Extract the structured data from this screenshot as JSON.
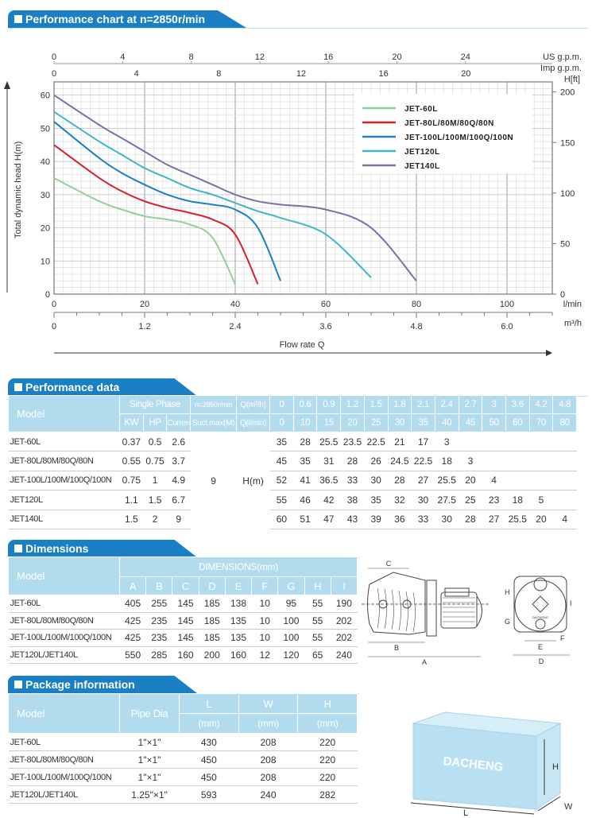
{
  "sections": {
    "chart": "Performance chart at n=2850r/min",
    "performance": "Performance data",
    "dimensions": "Dimensions",
    "package": "Package information"
  },
  "chart_data": {
    "type": "line",
    "title": "Performance chart at n=2850r/min",
    "xlabel": "Flow rate Q",
    "ylabel": "Total dynamic head H(m)",
    "x_unit": "l/min",
    "x2_unit": "m³/h",
    "top_unit_1": "US g.p.m.",
    "top_unit_2": "Imp g.p.m.",
    "right_unit": "H[ft]",
    "xlim": [
      0,
      110
    ],
    "ylim": [
      0,
      64
    ],
    "grid": true,
    "legend_position": "top-right",
    "x_ticks": [
      0,
      20,
      40,
      60,
      80,
      100
    ],
    "x2_ticks": [
      "0",
      "1.2",
      "2.4",
      "3.6",
      "4.8",
      "6.0"
    ],
    "y_ticks": [
      0,
      10,
      20,
      30,
      40,
      50,
      60
    ],
    "right_ticks": [
      0,
      50,
      100,
      150,
      200
    ],
    "us_gpm_ticks": [
      0,
      4,
      8,
      12,
      16,
      20,
      24
    ],
    "imp_gpm_ticks": [
      0,
      4,
      8,
      12,
      16,
      20
    ],
    "series": [
      {
        "name": "JET-60L",
        "color": "#8fd0a0",
        "x": [
          0,
          10,
          15,
          20,
          25,
          30,
          35,
          40
        ],
        "y": [
          35,
          28,
          25.5,
          23.5,
          22.5,
          21,
          17,
          3
        ]
      },
      {
        "name": "JET-80L/80M/80Q/80N",
        "color": "#d81e2a",
        "x": [
          0,
          10,
          15,
          20,
          25,
          30,
          35,
          40,
          45
        ],
        "y": [
          45,
          35,
          31,
          28,
          26,
          24.5,
          22.5,
          18,
          3
        ]
      },
      {
        "name": "JET-100L/100M/100Q/100N",
        "color": "#1a7fc4",
        "x": [
          0,
          10,
          15,
          20,
          25,
          30,
          35,
          40,
          45,
          50
        ],
        "y": [
          52,
          41,
          36.5,
          33,
          30,
          28,
          27,
          25.5,
          20,
          4
        ]
      },
      {
        "name": "JET120L",
        "color": "#3fb8c4",
        "x": [
          0,
          10,
          15,
          20,
          25,
          30,
          35,
          40,
          45,
          50,
          60,
          70
        ],
        "y": [
          55,
          46,
          42,
          38,
          35,
          32,
          30,
          27.5,
          25,
          23,
          18,
          5
        ]
      },
      {
        "name": "JET140L",
        "color": "#7a70a8",
        "x": [
          0,
          10,
          15,
          20,
          25,
          30,
          35,
          40,
          45,
          50,
          60,
          70,
          80
        ],
        "y": [
          60,
          51,
          47,
          43,
          39,
          36,
          33,
          30,
          28,
          27,
          25.5,
          20,
          4
        ]
      }
    ]
  },
  "performance": {
    "head": {
      "model": "Model",
      "single_phase": "Single Phase",
      "kw": "KW",
      "hp": "HP",
      "current": "Current(A)",
      "speed": "n=2850r/min",
      "suct": "Suct.max(M)",
      "q_m3h": "Q(m³/h)",
      "q_lmin": "Q(l/min)"
    },
    "q_m3h": [
      "0",
      "0.6",
      "0.9",
      "1.2",
      "1.5",
      "1.8",
      "2.1",
      "2.4",
      "2.7",
      "3",
      "3.6",
      "4.2",
      "4.8"
    ],
    "q_lmin": [
      "0",
      "10",
      "15",
      "20",
      "25",
      "30",
      "35",
      "40",
      "45",
      "50",
      "60",
      "70",
      "80"
    ],
    "suct_value": "9",
    "h_label": "H(m)",
    "rows": [
      {
        "model": "JET-60L",
        "kw": "0.37",
        "hp": "0.5",
        "current": "2.6",
        "h": [
          "35",
          "28",
          "25.5",
          "23.5",
          "22.5",
          "21",
          "17",
          "3",
          "",
          "",
          "",
          "",
          ""
        ]
      },
      {
        "model": "JET-80L/80M/80Q/80N",
        "kw": "0.55",
        "hp": "0.75",
        "current": "3.7",
        "h": [
          "45",
          "35",
          "31",
          "28",
          "26",
          "24.5",
          "22.5",
          "18",
          "3",
          "",
          "",
          "",
          ""
        ]
      },
      {
        "model": "JET-100L/100M/100Q/100N",
        "kw": "0.75",
        "hp": "1",
        "current": "4.9",
        "h": [
          "52",
          "41",
          "36.5",
          "33",
          "30",
          "28",
          "27",
          "25.5",
          "20",
          "4",
          "",
          "",
          ""
        ]
      },
      {
        "model": "JET120L",
        "kw": "1.1",
        "hp": "1.5",
        "current": "6.7",
        "h": [
          "55",
          "46",
          "42",
          "38",
          "35",
          "32",
          "30",
          "27.5",
          "25",
          "23",
          "18",
          "5",
          ""
        ]
      },
      {
        "model": "JET140L",
        "kw": "1.5",
        "hp": "2",
        "current": "9",
        "h": [
          "60",
          "51",
          "47",
          "43",
          "39",
          "36",
          "33",
          "30",
          "28",
          "27",
          "25.5",
          "20",
          "4"
        ]
      }
    ]
  },
  "dimensions": {
    "head": {
      "model": "Model",
      "group": "DIMENSIONS(mm)"
    },
    "cols": [
      "A",
      "B",
      "C",
      "D",
      "E",
      "F",
      "G",
      "H",
      "I"
    ],
    "rows": [
      {
        "model": "JET-60L",
        "v": [
          "405",
          "255",
          "145",
          "185",
          "138",
          "10",
          "95",
          "55",
          "190"
        ]
      },
      {
        "model": "JET-80L/80M/80Q/80N",
        "v": [
          "425",
          "235",
          "145",
          "185",
          "135",
          "10",
          "100",
          "55",
          "202"
        ]
      },
      {
        "model": "JET-100L/100M/100Q/100N",
        "v": [
          "425",
          "235",
          "145",
          "185",
          "135",
          "10",
          "100",
          "55",
          "202"
        ]
      },
      {
        "model": "JET120L/JET140L",
        "v": [
          "550",
          "285",
          "160",
          "200",
          "160",
          "12",
          "120",
          "65",
          "240"
        ]
      }
    ],
    "drawing_labels": [
      "A",
      "B",
      "C",
      "D",
      "E",
      "F",
      "G",
      "H",
      "I"
    ],
    "pump_brand": "DACHENG"
  },
  "package": {
    "head": {
      "model": "Model",
      "pipe": "Pipe Dia",
      "l": "L",
      "w": "W",
      "h": "H",
      "unit": "(mm)"
    },
    "rows": [
      {
        "model": "JET-60L",
        "pipe": "1\"×1\"",
        "l": "430",
        "w": "208",
        "h": "220"
      },
      {
        "model": "JET-80L/80M/80Q/80N",
        "pipe": "1\"×1\"",
        "l": "450",
        "w": "208",
        "h": "220"
      },
      {
        "model": "JET-100L/100M/100Q/100N",
        "pipe": "1\"×1\"",
        "l": "450",
        "w": "208",
        "h": "220"
      },
      {
        "model": "JET120L/JET140L",
        "pipe": "1.25\"×1\"",
        "l": "593",
        "w": "240",
        "h": "282"
      }
    ],
    "box_brand": "DACHENG",
    "box_labels": {
      "l": "L",
      "w": "W",
      "h": "H"
    }
  }
}
